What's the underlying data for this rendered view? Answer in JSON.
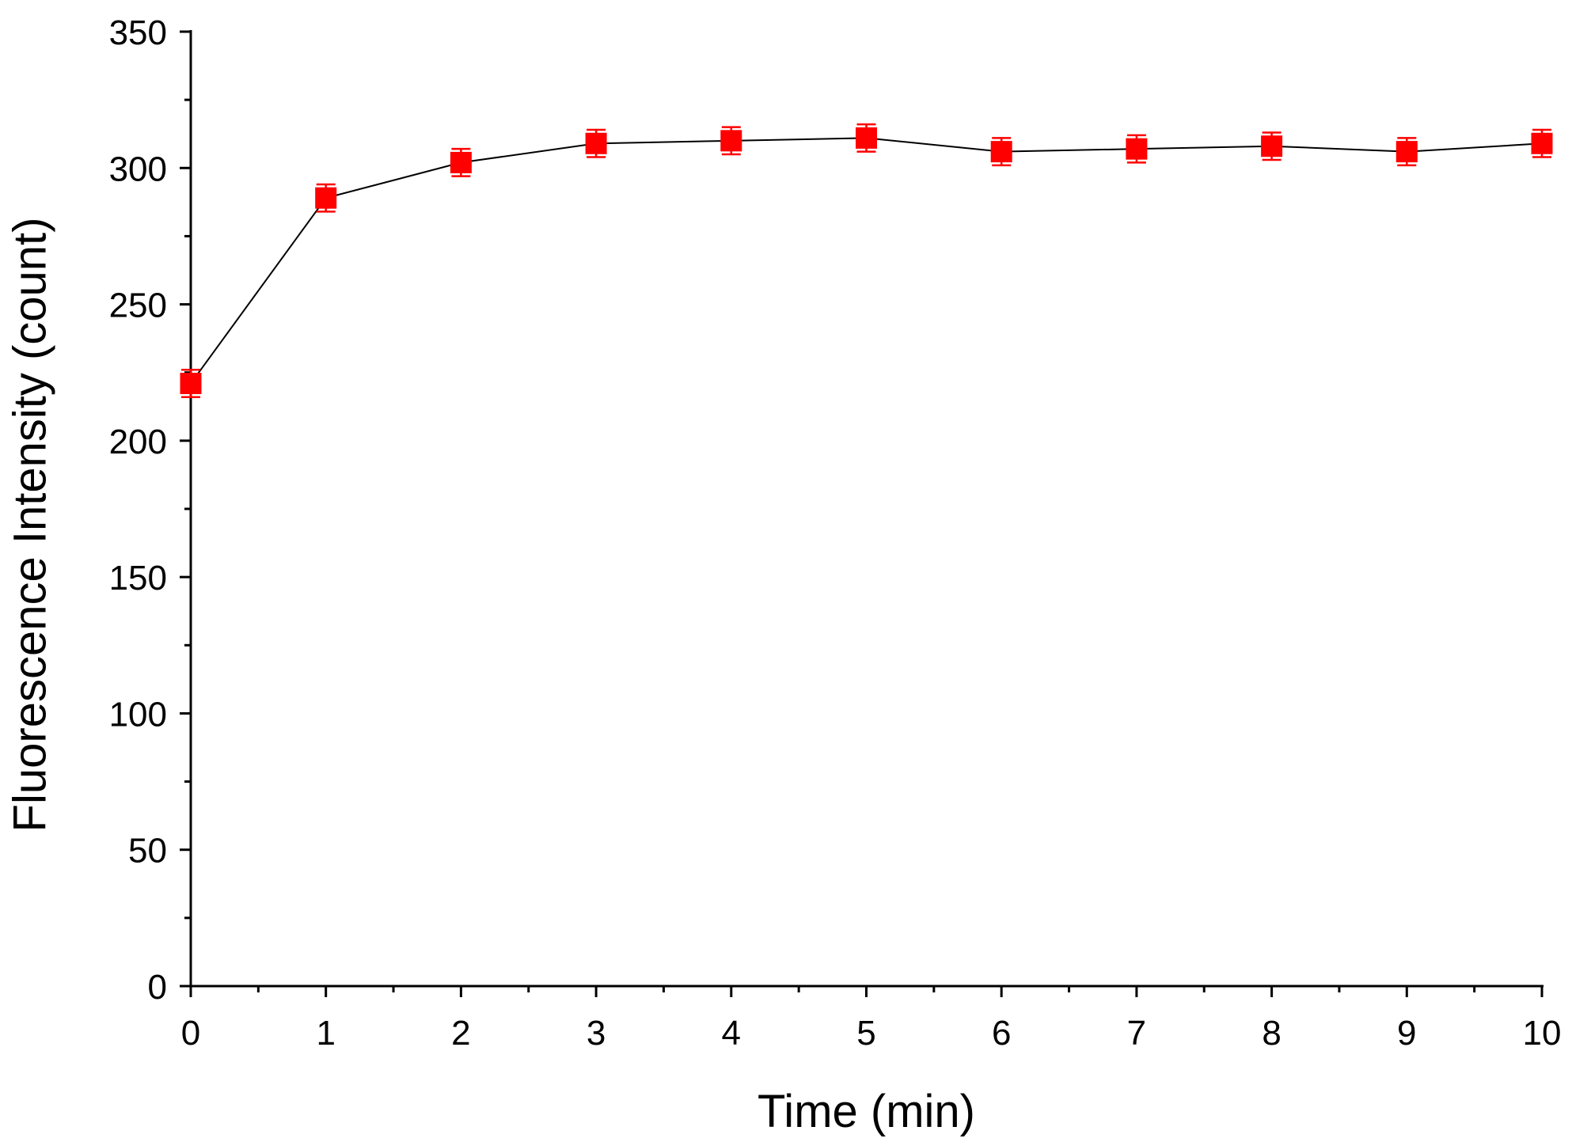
{
  "chart_data": {
    "type": "scatter",
    "title": "",
    "xlabel": "Time (min)",
    "ylabel": "Fluorescence Intensity (count)",
    "xlim": [
      0,
      10
    ],
    "ylim": [
      0,
      350
    ],
    "x_ticks": [
      0,
      1,
      2,
      3,
      4,
      5,
      6,
      7,
      8,
      9,
      10
    ],
    "y_ticks": [
      0,
      50,
      100,
      150,
      200,
      250,
      300,
      350
    ],
    "x_minor_step": 0.5,
    "y_minor_step": 25,
    "grid": false,
    "legend": "none",
    "series": [
      {
        "x": [
          0,
          1,
          2,
          3,
          4,
          5,
          6,
          7,
          8,
          9,
          10
        ],
        "y": [
          221,
          289,
          302,
          309,
          310,
          311,
          306,
          307,
          308,
          306,
          309
        ],
        "error": [
          5,
          5,
          5,
          5,
          5,
          5,
          5,
          5,
          5,
          5,
          5
        ],
        "marker": "square",
        "marker_color": "#ff0000",
        "line_color": "#000000"
      }
    ]
  }
}
